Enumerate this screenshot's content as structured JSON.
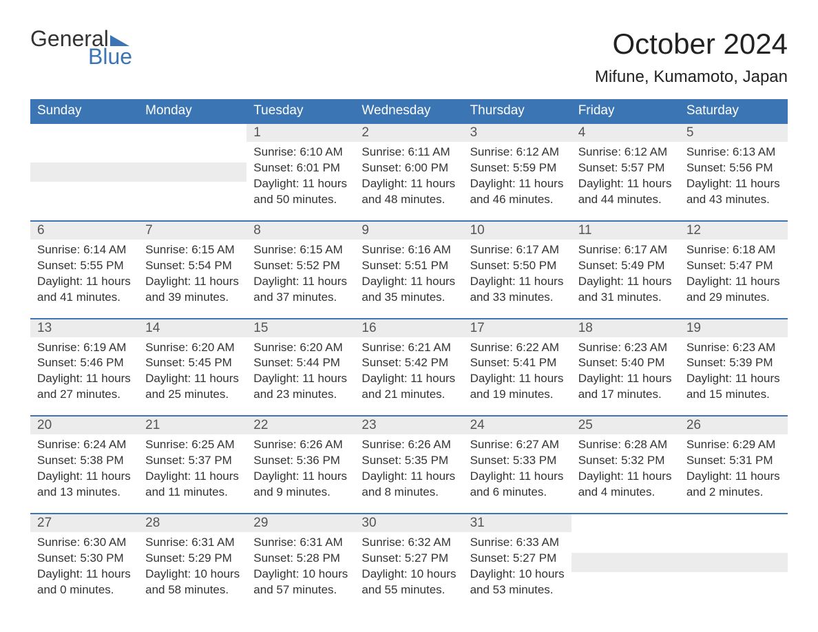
{
  "brand": {
    "word1": "General",
    "word2": "Blue",
    "text_color": "#333333",
    "accent_color": "#3b75b3",
    "flag_color": "#3b75b3"
  },
  "title": "October 2024",
  "location": "Mifune, Kumamoto, Japan",
  "colors": {
    "header_bg": "#3b75b3",
    "header_text": "#ffffff",
    "daynum_bg": "#ececec",
    "daynum_text": "#555555",
    "cell_border": "#3b75b3",
    "body_text": "#333333",
    "page_bg": "#ffffff"
  },
  "layout": {
    "type": "calendar",
    "columns": 7,
    "rows": 5,
    "title_fontsize": 42,
    "location_fontsize": 24,
    "header_fontsize": 19,
    "daynum_fontsize": 19,
    "body_fontsize": 17
  },
  "weekdays": [
    "Sunday",
    "Monday",
    "Tuesday",
    "Wednesday",
    "Thursday",
    "Friday",
    "Saturday"
  ],
  "weeks": [
    [
      {
        "empty": true
      },
      {
        "empty": true
      },
      {
        "day": "1",
        "sunrise": "Sunrise: 6:10 AM",
        "sunset": "Sunset: 6:01 PM",
        "dl1": "Daylight: 11 hours",
        "dl2": "and 50 minutes."
      },
      {
        "day": "2",
        "sunrise": "Sunrise: 6:11 AM",
        "sunset": "Sunset: 6:00 PM",
        "dl1": "Daylight: 11 hours",
        "dl2": "and 48 minutes."
      },
      {
        "day": "3",
        "sunrise": "Sunrise: 6:12 AM",
        "sunset": "Sunset: 5:59 PM",
        "dl1": "Daylight: 11 hours",
        "dl2": "and 46 minutes."
      },
      {
        "day": "4",
        "sunrise": "Sunrise: 6:12 AM",
        "sunset": "Sunset: 5:57 PM",
        "dl1": "Daylight: 11 hours",
        "dl2": "and 44 minutes."
      },
      {
        "day": "5",
        "sunrise": "Sunrise: 6:13 AM",
        "sunset": "Sunset: 5:56 PM",
        "dl1": "Daylight: 11 hours",
        "dl2": "and 43 minutes."
      }
    ],
    [
      {
        "day": "6",
        "sunrise": "Sunrise: 6:14 AM",
        "sunset": "Sunset: 5:55 PM",
        "dl1": "Daylight: 11 hours",
        "dl2": "and 41 minutes."
      },
      {
        "day": "7",
        "sunrise": "Sunrise: 6:15 AM",
        "sunset": "Sunset: 5:54 PM",
        "dl1": "Daylight: 11 hours",
        "dl2": "and 39 minutes."
      },
      {
        "day": "8",
        "sunrise": "Sunrise: 6:15 AM",
        "sunset": "Sunset: 5:52 PM",
        "dl1": "Daylight: 11 hours",
        "dl2": "and 37 minutes."
      },
      {
        "day": "9",
        "sunrise": "Sunrise: 6:16 AM",
        "sunset": "Sunset: 5:51 PM",
        "dl1": "Daylight: 11 hours",
        "dl2": "and 35 minutes."
      },
      {
        "day": "10",
        "sunrise": "Sunrise: 6:17 AM",
        "sunset": "Sunset: 5:50 PM",
        "dl1": "Daylight: 11 hours",
        "dl2": "and 33 minutes."
      },
      {
        "day": "11",
        "sunrise": "Sunrise: 6:17 AM",
        "sunset": "Sunset: 5:49 PM",
        "dl1": "Daylight: 11 hours",
        "dl2": "and 31 minutes."
      },
      {
        "day": "12",
        "sunrise": "Sunrise: 6:18 AM",
        "sunset": "Sunset: 5:47 PM",
        "dl1": "Daylight: 11 hours",
        "dl2": "and 29 minutes."
      }
    ],
    [
      {
        "day": "13",
        "sunrise": "Sunrise: 6:19 AM",
        "sunset": "Sunset: 5:46 PM",
        "dl1": "Daylight: 11 hours",
        "dl2": "and 27 minutes."
      },
      {
        "day": "14",
        "sunrise": "Sunrise: 6:20 AM",
        "sunset": "Sunset: 5:45 PM",
        "dl1": "Daylight: 11 hours",
        "dl2": "and 25 minutes."
      },
      {
        "day": "15",
        "sunrise": "Sunrise: 6:20 AM",
        "sunset": "Sunset: 5:44 PM",
        "dl1": "Daylight: 11 hours",
        "dl2": "and 23 minutes."
      },
      {
        "day": "16",
        "sunrise": "Sunrise: 6:21 AM",
        "sunset": "Sunset: 5:42 PM",
        "dl1": "Daylight: 11 hours",
        "dl2": "and 21 minutes."
      },
      {
        "day": "17",
        "sunrise": "Sunrise: 6:22 AM",
        "sunset": "Sunset: 5:41 PM",
        "dl1": "Daylight: 11 hours",
        "dl2": "and 19 minutes."
      },
      {
        "day": "18",
        "sunrise": "Sunrise: 6:23 AM",
        "sunset": "Sunset: 5:40 PM",
        "dl1": "Daylight: 11 hours",
        "dl2": "and 17 minutes."
      },
      {
        "day": "19",
        "sunrise": "Sunrise: 6:23 AM",
        "sunset": "Sunset: 5:39 PM",
        "dl1": "Daylight: 11 hours",
        "dl2": "and 15 minutes."
      }
    ],
    [
      {
        "day": "20",
        "sunrise": "Sunrise: 6:24 AM",
        "sunset": "Sunset: 5:38 PM",
        "dl1": "Daylight: 11 hours",
        "dl2": "and 13 minutes."
      },
      {
        "day": "21",
        "sunrise": "Sunrise: 6:25 AM",
        "sunset": "Sunset: 5:37 PM",
        "dl1": "Daylight: 11 hours",
        "dl2": "and 11 minutes."
      },
      {
        "day": "22",
        "sunrise": "Sunrise: 6:26 AM",
        "sunset": "Sunset: 5:36 PM",
        "dl1": "Daylight: 11 hours",
        "dl2": "and 9 minutes."
      },
      {
        "day": "23",
        "sunrise": "Sunrise: 6:26 AM",
        "sunset": "Sunset: 5:35 PM",
        "dl1": "Daylight: 11 hours",
        "dl2": "and 8 minutes."
      },
      {
        "day": "24",
        "sunrise": "Sunrise: 6:27 AM",
        "sunset": "Sunset: 5:33 PM",
        "dl1": "Daylight: 11 hours",
        "dl2": "and 6 minutes."
      },
      {
        "day": "25",
        "sunrise": "Sunrise: 6:28 AM",
        "sunset": "Sunset: 5:32 PM",
        "dl1": "Daylight: 11 hours",
        "dl2": "and 4 minutes."
      },
      {
        "day": "26",
        "sunrise": "Sunrise: 6:29 AM",
        "sunset": "Sunset: 5:31 PM",
        "dl1": "Daylight: 11 hours",
        "dl2": "and 2 minutes."
      }
    ],
    [
      {
        "day": "27",
        "sunrise": "Sunrise: 6:30 AM",
        "sunset": "Sunset: 5:30 PM",
        "dl1": "Daylight: 11 hours",
        "dl2": "and 0 minutes."
      },
      {
        "day": "28",
        "sunrise": "Sunrise: 6:31 AM",
        "sunset": "Sunset: 5:29 PM",
        "dl1": "Daylight: 10 hours",
        "dl2": "and 58 minutes."
      },
      {
        "day": "29",
        "sunrise": "Sunrise: 6:31 AM",
        "sunset": "Sunset: 5:28 PM",
        "dl1": "Daylight: 10 hours",
        "dl2": "and 57 minutes."
      },
      {
        "day": "30",
        "sunrise": "Sunrise: 6:32 AM",
        "sunset": "Sunset: 5:27 PM",
        "dl1": "Daylight: 10 hours",
        "dl2": "and 55 minutes."
      },
      {
        "day": "31",
        "sunrise": "Sunrise: 6:33 AM",
        "sunset": "Sunset: 5:27 PM",
        "dl1": "Daylight: 10 hours",
        "dl2": "and 53 minutes."
      },
      {
        "empty": true
      },
      {
        "empty": true
      }
    ]
  ]
}
